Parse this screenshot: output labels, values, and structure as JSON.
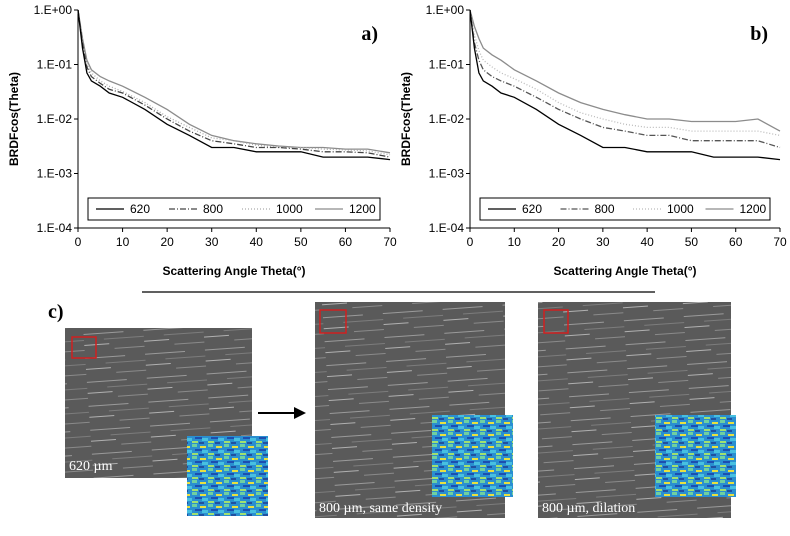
{
  "chart_data": [
    {
      "type": "line",
      "panel_label": "a)",
      "xlabel": "Scattering Angle Theta(°)",
      "ylabel": "BRDFcos(Theta)",
      "yscale": "log",
      "legend": "bottom",
      "x": [
        0,
        1,
        2,
        3,
        5,
        7,
        10,
        15,
        20,
        25,
        30,
        35,
        40,
        45,
        50,
        55,
        60,
        65,
        70
      ],
      "xlim": [
        0,
        70
      ],
      "xticks": [
        0,
        10,
        20,
        30,
        40,
        50,
        60,
        70
      ],
      "ylim": [
        0.0001,
        1
      ],
      "yticks": [
        {
          "value": 0.0001,
          "label": "1.E-04"
        },
        {
          "value": 0.001,
          "label": "1.E-03"
        },
        {
          "value": 0.01,
          "label": "1.E-02"
        },
        {
          "value": 0.1,
          "label": "1.E-01"
        },
        {
          "value": 1,
          "label": "1.E+00"
        }
      ],
      "series": [
        {
          "name": "620",
          "color": "#000000",
          "dash": "solid",
          "values": [
            1,
            0.2,
            0.07,
            0.05,
            0.04,
            0.03,
            0.025,
            0.015,
            0.008,
            0.005,
            0.003,
            0.003,
            0.0025,
            0.0025,
            0.0025,
            0.002,
            0.002,
            0.002,
            0.0018
          ]
        },
        {
          "name": "800",
          "color": "#444444",
          "dash": "dashdot",
          "values": [
            1,
            0.25,
            0.09,
            0.06,
            0.045,
            0.035,
            0.03,
            0.018,
            0.01,
            0.006,
            0.004,
            0.0035,
            0.003,
            0.003,
            0.0028,
            0.0025,
            0.0025,
            0.0024,
            0.002
          ]
        },
        {
          "name": "1000",
          "color": "#aaaaaa",
          "dash": "dotted",
          "values": [
            1,
            0.28,
            0.1,
            0.07,
            0.05,
            0.04,
            0.032,
            0.02,
            0.011,
            0.007,
            0.0045,
            0.004,
            0.0033,
            0.003,
            0.003,
            0.0028,
            0.0027,
            0.0026,
            0.0022
          ]
        },
        {
          "name": "1200",
          "color": "#8c8c8c",
          "dash": "solid",
          "values": [
            1,
            0.3,
            0.12,
            0.08,
            0.06,
            0.05,
            0.04,
            0.025,
            0.015,
            0.008,
            0.005,
            0.004,
            0.0035,
            0.0032,
            0.003,
            0.003,
            0.0028,
            0.0028,
            0.0024
          ]
        }
      ]
    },
    {
      "type": "line",
      "panel_label": "b)",
      "xlabel": "Scattering Angle Theta(°)",
      "ylabel": "BRDFcos(Theta)",
      "yscale": "log",
      "legend": "bottom",
      "x": [
        0,
        1,
        2,
        3,
        5,
        7,
        10,
        15,
        20,
        25,
        30,
        35,
        40,
        45,
        50,
        55,
        60,
        65,
        70
      ],
      "xlim": [
        0,
        70
      ],
      "xticks": [
        0,
        10,
        20,
        30,
        40,
        50,
        60,
        70
      ],
      "ylim": [
        0.0001,
        1
      ],
      "yticks": [
        {
          "value": 0.0001,
          "label": "1.E-04"
        },
        {
          "value": 0.001,
          "label": "1.E-03"
        },
        {
          "value": 0.01,
          "label": "1.E-02"
        },
        {
          "value": 0.1,
          "label": "1.E-01"
        },
        {
          "value": 1,
          "label": "1.E+00"
        }
      ],
      "series": [
        {
          "name": "620",
          "color": "#000000",
          "dash": "solid",
          "values": [
            1,
            0.2,
            0.07,
            0.05,
            0.04,
            0.03,
            0.025,
            0.015,
            0.008,
            0.005,
            0.003,
            0.003,
            0.0025,
            0.0025,
            0.0025,
            0.002,
            0.002,
            0.002,
            0.0018
          ]
        },
        {
          "name": "800",
          "color": "#555555",
          "dash": "dashdot",
          "values": [
            1,
            0.25,
            0.12,
            0.08,
            0.06,
            0.05,
            0.04,
            0.025,
            0.015,
            0.01,
            0.007,
            0.006,
            0.005,
            0.005,
            0.004,
            0.004,
            0.004,
            0.004,
            0.003
          ]
        },
        {
          "name": "1000",
          "color": "#bbbbbb",
          "dash": "dotted",
          "values": [
            1,
            0.35,
            0.18,
            0.12,
            0.09,
            0.07,
            0.055,
            0.035,
            0.02,
            0.013,
            0.01,
            0.008,
            0.007,
            0.007,
            0.006,
            0.006,
            0.006,
            0.006,
            0.005
          ]
        },
        {
          "name": "1200",
          "color": "#8c8c8c",
          "dash": "solid",
          "values": [
            1,
            0.5,
            0.3,
            0.2,
            0.15,
            0.12,
            0.08,
            0.05,
            0.03,
            0.02,
            0.015,
            0.012,
            0.01,
            0.01,
            0.009,
            0.009,
            0.009,
            0.01,
            0.006
          ]
        }
      ]
    }
  ],
  "figure": {
    "label": "c)",
    "images": [
      {
        "caption": "620 µm"
      },
      {
        "caption": "800 µm, same density"
      },
      {
        "caption": "800 µm, dilation"
      }
    ]
  }
}
